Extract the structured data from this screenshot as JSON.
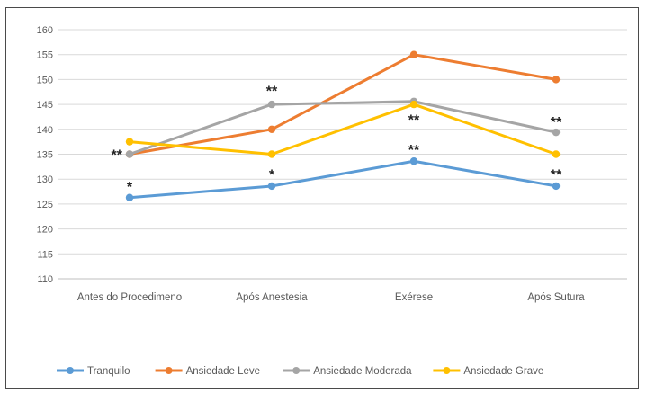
{
  "chart_data": {
    "type": "line",
    "title": "",
    "xlabel": "",
    "ylabel": "",
    "ylim": [
      110,
      160
    ],
    "ytick_step": 5,
    "y_ticks": [
      "160",
      "155",
      "150",
      "145",
      "140",
      "135",
      "130",
      "125",
      "120",
      "115",
      "110"
    ],
    "grid": true,
    "legend_position": "bottom",
    "categories": [
      "Antes do Procedimeno",
      "Após Anestesia",
      "Exérese",
      "Após Sutura"
    ],
    "series": [
      {
        "name": "Tranquilo",
        "color": "#5b9bd5",
        "values": [
          126.3,
          128.6,
          133.6,
          128.6
        ]
      },
      {
        "name": "Ansiedade Leve",
        "color": "#ed7d31",
        "values": [
          135,
          140,
          155,
          150
        ]
      },
      {
        "name": "Ansiedade Moderada",
        "color": "#a5a5a5",
        "values": [
          135,
          145,
          145.6,
          139.4
        ]
      },
      {
        "name": "Ansiedade Grave",
        "color": "#ffc000",
        "values": [
          137.5,
          135,
          145,
          135
        ]
      }
    ],
    "annotations": [
      {
        "category": "Antes do Procedimeno",
        "y": 135,
        "text": "**",
        "side": "left"
      },
      {
        "category": "Antes do Procedimeno",
        "y": 128.6,
        "text": "*",
        "side": "above"
      },
      {
        "category": "Após Anestesia",
        "y": 147.8,
        "text": "**",
        "side": "above"
      },
      {
        "category": "Após Anestesia",
        "y": 131.0,
        "text": "*",
        "side": "above"
      },
      {
        "category": "Exérese",
        "y": 142.0,
        "text": "**",
        "side": "above"
      },
      {
        "category": "Exérese",
        "y": 136.0,
        "text": "**",
        "side": "above"
      },
      {
        "category": "Após Sutura",
        "y": 141.6,
        "text": "**",
        "side": "above"
      },
      {
        "category": "Após Sutura",
        "y": 131.0,
        "text": "**",
        "side": "above"
      }
    ]
  }
}
